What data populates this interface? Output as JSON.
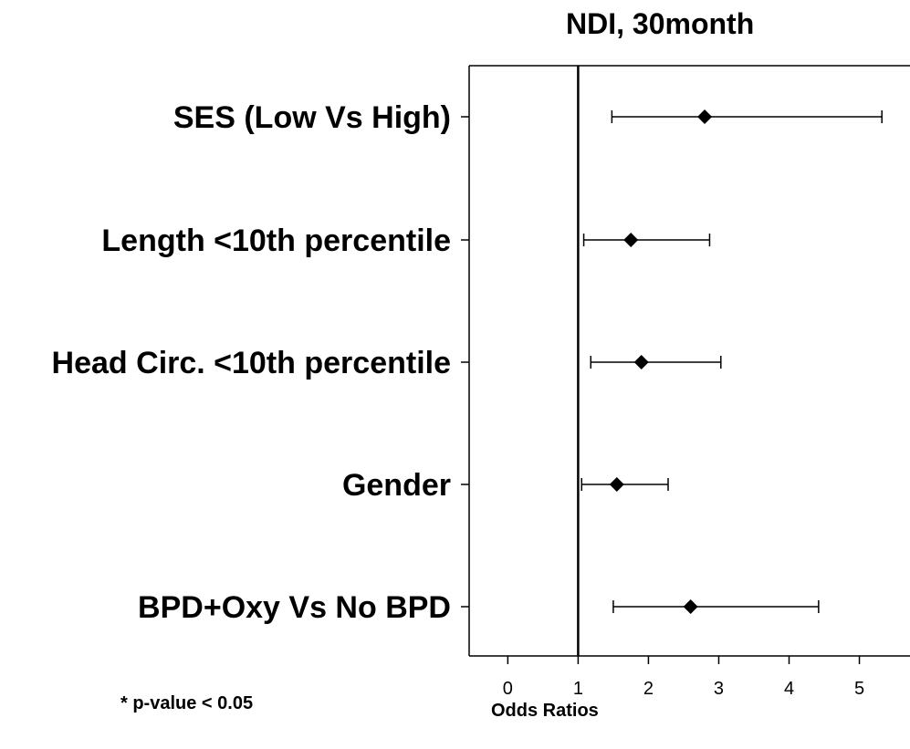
{
  "chart_data": {
    "type": "forest",
    "title": "NDI, 30month",
    "xlabel": "Odds Ratios",
    "ylabel": "",
    "xlim": [
      -0.55,
      5.72
    ],
    "xticks": [
      0,
      1,
      2,
      3,
      4,
      5
    ],
    "reference_line": 1,
    "grid": false,
    "legend": "none",
    "categories": [
      "SES (Low Vs High)",
      "Length <10th percentile",
      "Head Circ. <10th percentile",
      "Gender",
      "BPD+Oxy Vs No BPD"
    ],
    "estimates": [
      2.8,
      1.75,
      1.9,
      1.55,
      2.6
    ],
    "ci_lower": [
      1.48,
      1.08,
      1.18,
      1.05,
      1.5
    ],
    "ci_upper": [
      5.32,
      2.87,
      3.03,
      2.28,
      4.42
    ],
    "footnote": "* p-value < 0.05"
  },
  "colors": {
    "ink": "#000000",
    "background": "#ffffff"
  }
}
